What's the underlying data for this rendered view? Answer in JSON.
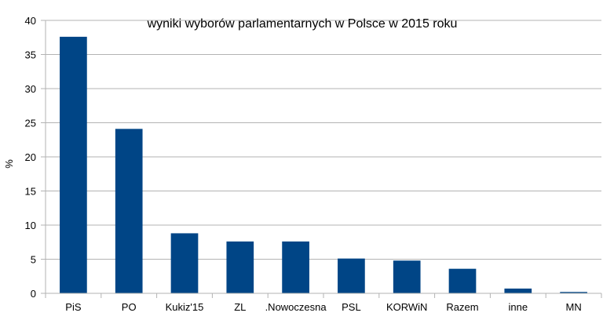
{
  "chart_data": {
    "type": "bar",
    "title": "wyniki wyborów parlamentarnych w Polsce w 2015 roku",
    "xlabel": "",
    "ylabel": "%",
    "ylim": [
      0,
      40
    ],
    "yticks": [
      0,
      5,
      10,
      15,
      20,
      25,
      30,
      35,
      40
    ],
    "grid": true,
    "legend": "none",
    "bar_color": "#004586",
    "categories": [
      "PiS",
      "PO",
      "Kukiz'15",
      "ZL",
      ".Nowoczesna",
      "PSL",
      "KORWiN",
      "Razem",
      "inne",
      "MN"
    ],
    "values": [
      37.6,
      24.1,
      8.8,
      7.6,
      7.6,
      5.1,
      4.8,
      3.6,
      0.7,
      0.2
    ]
  }
}
